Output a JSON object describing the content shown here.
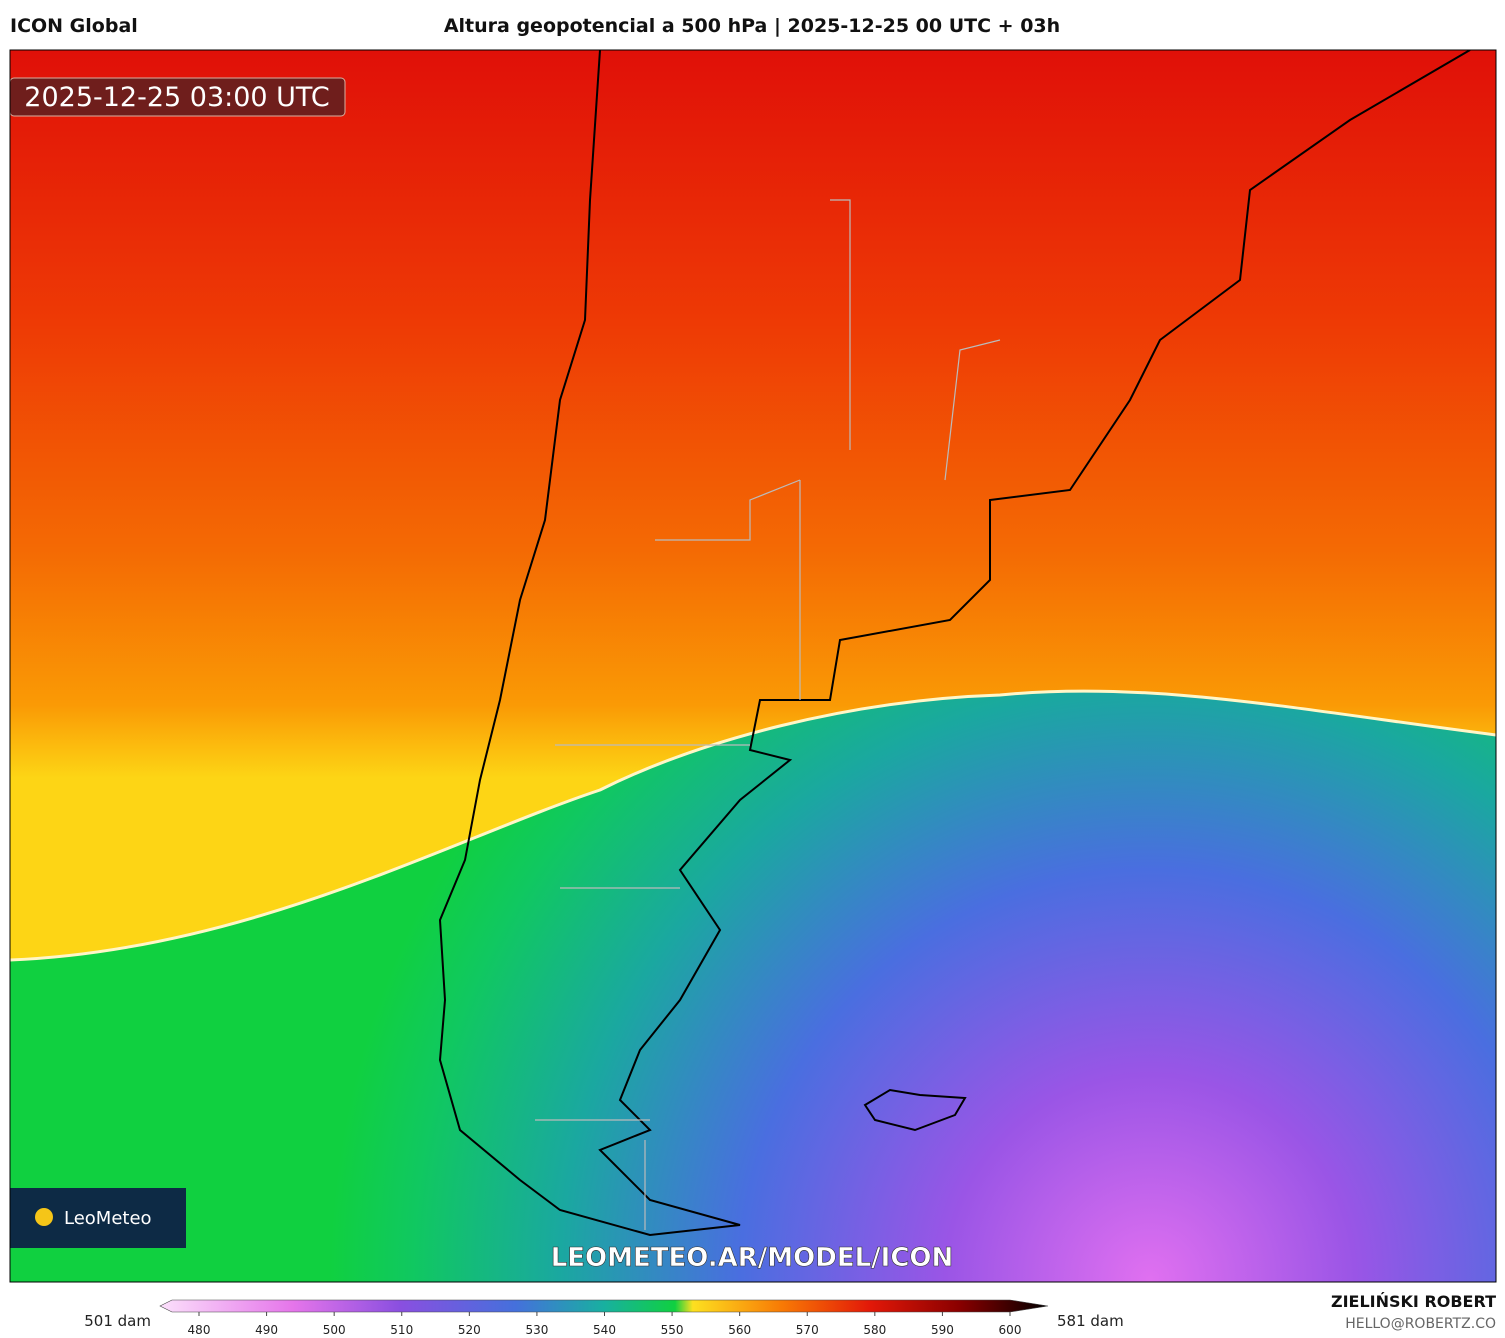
{
  "header": {
    "model": "ICON Global",
    "title": "Altura geopotencial a 500 hPa | 2025-12-25 00 UTC + 03h"
  },
  "map": {
    "valid_time": "2025-12-25 03:00 UTC",
    "watermark": "LEOMETEO.AR/MODEL/ICON",
    "logo": "LeoMeteo"
  },
  "colorbar": {
    "min_label": "501 dam",
    "max_label": "581 dam",
    "ticks": [
      480,
      490,
      500,
      510,
      520,
      530,
      540,
      550,
      560,
      570,
      580,
      590,
      600
    ]
  },
  "footer": {
    "author": "ZIELIŃSKI ROBERT",
    "contact": "HELLO@ROBERTZ.CO"
  }
}
